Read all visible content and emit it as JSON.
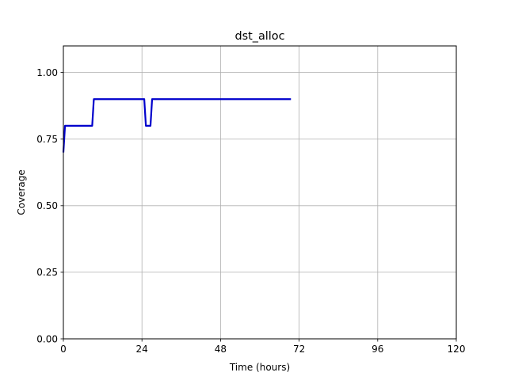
{
  "chart_data": {
    "type": "line",
    "title": "dst_alloc",
    "xlabel": "Time (hours)",
    "ylabel": "Coverage",
    "xlim": [
      0,
      120
    ],
    "ylim": [
      0,
      1.1
    ],
    "xticks": [
      0,
      24,
      48,
      72,
      96,
      120
    ],
    "xtick_labels": [
      "0",
      "24",
      "48",
      "72",
      "96",
      "120"
    ],
    "yticks": [
      0,
      0.25,
      0.5,
      0.75,
      1.0
    ],
    "ytick_labels": [
      "0.00",
      "0.25",
      "0.50",
      "0.75",
      "1.00"
    ],
    "grid": true,
    "series": [
      {
        "color": "#0000cc",
        "x": [
          0,
          0.5,
          8.8,
          9.3,
          24.7,
          25.2,
          26.6,
          27.1,
          69.5
        ],
        "y": [
          0.7,
          0.8,
          0.8,
          0.9,
          0.9,
          0.8,
          0.8,
          0.9,
          0.9
        ]
      }
    ]
  }
}
